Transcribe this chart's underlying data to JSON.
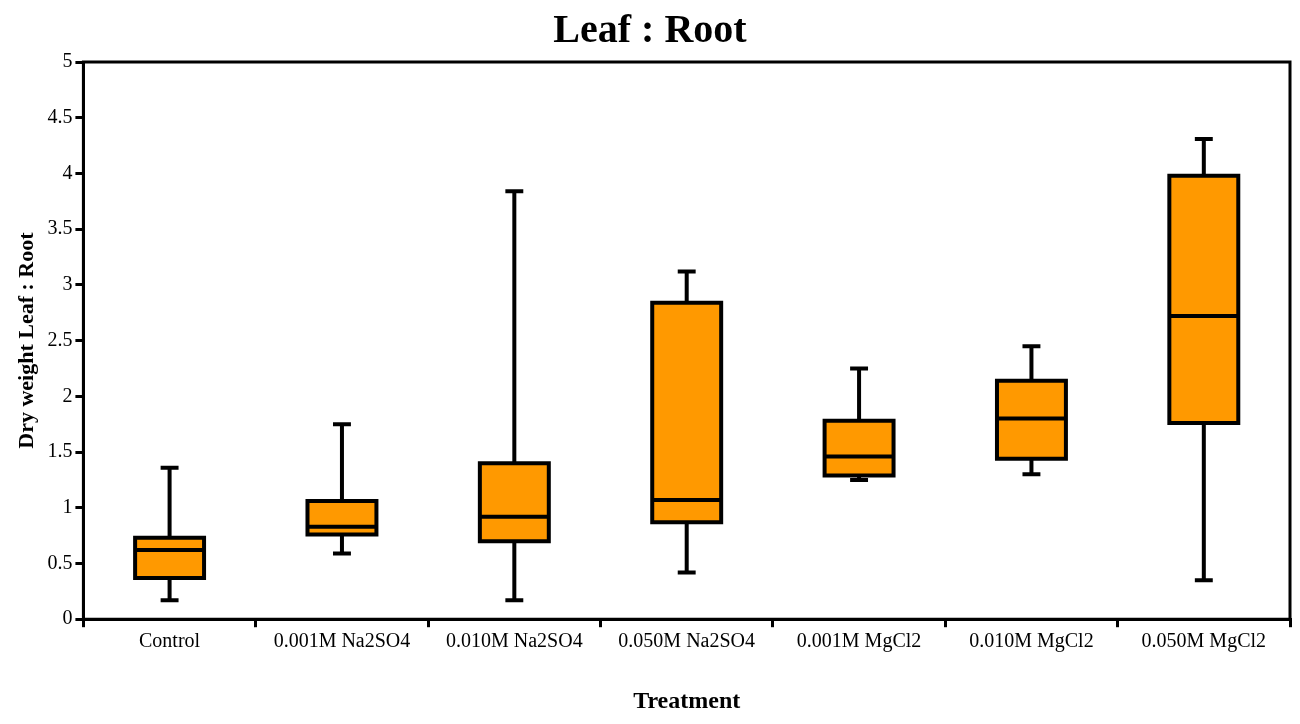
{
  "chart_data": {
    "type": "box",
    "title": "Leaf : Root",
    "xlabel": "Treatment",
    "ylabel": "Dry weight Leaf : Root",
    "categories": [
      "Control",
      "0.001M Na2SO4",
      "0.010M Na2SO4",
      "0.050M Na2SO4",
      "0.001M MgCl2",
      "0.010M MgCl2",
      "0.050M MgCl2"
    ],
    "color": "#ff9900",
    "boxes": [
      {
        "low": 0.17,
        "q1": 0.37,
        "median": 0.62,
        "q3": 0.73,
        "high": 1.36
      },
      {
        "low": 0.59,
        "q1": 0.76,
        "median": 0.83,
        "q3": 1.06,
        "high": 1.75
      },
      {
        "low": 0.17,
        "q1": 0.7,
        "median": 0.92,
        "q3": 1.4,
        "high": 3.84
      },
      {
        "low": 0.42,
        "q1": 0.87,
        "median": 1.07,
        "q3": 2.84,
        "high": 3.12
      },
      {
        "low": 1.25,
        "q1": 1.29,
        "median": 1.46,
        "q3": 1.78,
        "high": 2.25
      },
      {
        "low": 1.3,
        "q1": 1.44,
        "median": 1.8,
        "q3": 2.14,
        "high": 2.45
      },
      {
        "low": 0.35,
        "q1": 1.76,
        "median": 2.72,
        "q3": 3.98,
        "high": 4.31
      }
    ],
    "ylim": [
      0,
      5
    ],
    "yticks": [
      0,
      0.5,
      1,
      1.5,
      2,
      2.5,
      3,
      3.5,
      4,
      4.5,
      5
    ],
    "grid": false,
    "legend": false
  }
}
